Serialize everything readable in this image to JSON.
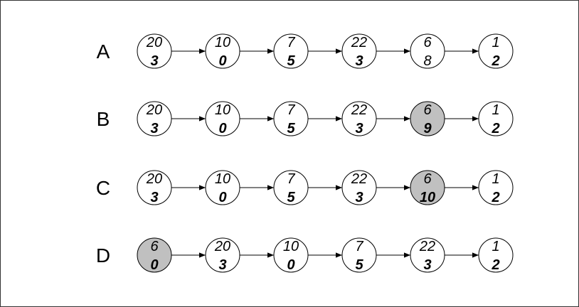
{
  "rows": [
    {
      "label": "A",
      "nodes": [
        {
          "top": "20",
          "bottom": "3",
          "bottom_bold": true,
          "highlighted": false
        },
        {
          "top": "10",
          "bottom": "0",
          "bottom_bold": true,
          "highlighted": false
        },
        {
          "top": "7",
          "bottom": "5",
          "bottom_bold": true,
          "highlighted": false
        },
        {
          "top": "22",
          "bottom": "3",
          "bottom_bold": true,
          "highlighted": false
        },
        {
          "top": "6",
          "bottom": "8",
          "bottom_bold": false,
          "highlighted": false
        },
        {
          "top": "1",
          "bottom": "2",
          "bottom_bold": true,
          "highlighted": false
        }
      ]
    },
    {
      "label": "B",
      "nodes": [
        {
          "top": "20",
          "bottom": "3",
          "bottom_bold": true,
          "highlighted": false
        },
        {
          "top": "10",
          "bottom": "0",
          "bottom_bold": true,
          "highlighted": false
        },
        {
          "top": "7",
          "bottom": "5",
          "bottom_bold": true,
          "highlighted": false
        },
        {
          "top": "22",
          "bottom": "3",
          "bottom_bold": true,
          "highlighted": false
        },
        {
          "top": "6",
          "bottom": "9",
          "bottom_bold": true,
          "highlighted": true
        },
        {
          "top": "1",
          "bottom": "2",
          "bottom_bold": true,
          "highlighted": false
        }
      ]
    },
    {
      "label": "C",
      "nodes": [
        {
          "top": "20",
          "bottom": "3",
          "bottom_bold": true,
          "highlighted": false
        },
        {
          "top": "10",
          "bottom": "0",
          "bottom_bold": true,
          "highlighted": false
        },
        {
          "top": "7",
          "bottom": "5",
          "bottom_bold": true,
          "highlighted": false
        },
        {
          "top": "22",
          "bottom": "3",
          "bottom_bold": true,
          "highlighted": false
        },
        {
          "top": "6",
          "bottom": "10",
          "bottom_bold": true,
          "highlighted": true
        },
        {
          "top": "1",
          "bottom": "2",
          "bottom_bold": true,
          "highlighted": false
        }
      ]
    },
    {
      "label": "D",
      "nodes": [
        {
          "top": "6",
          "bottom": "0",
          "bottom_bold": true,
          "highlighted": true
        },
        {
          "top": "20",
          "bottom": "3",
          "bottom_bold": true,
          "highlighted": false
        },
        {
          "top": "10",
          "bottom": "0",
          "bottom_bold": true,
          "highlighted": false
        },
        {
          "top": "7",
          "bottom": "5",
          "bottom_bold": true,
          "highlighted": false
        },
        {
          "top": "22",
          "bottom": "3",
          "bottom_bold": true,
          "highlighted": false
        },
        {
          "top": "1",
          "bottom": "2",
          "bottom_bold": true,
          "highlighted": false
        }
      ]
    }
  ],
  "colors": {
    "highlight_fill": "#c0c0c0",
    "node_fill": "#ffffff",
    "stroke": "#000000"
  }
}
